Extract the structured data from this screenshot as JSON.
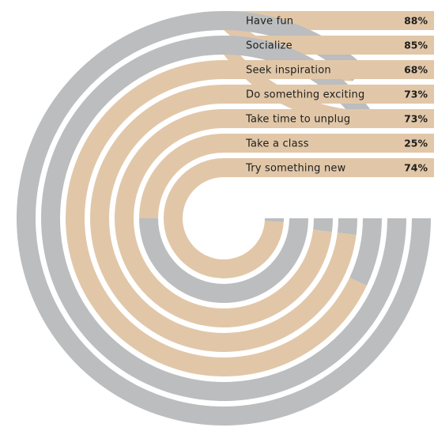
{
  "chart_data": {
    "type": "radial-bar",
    "categories": [
      "Have fun",
      "Socialize",
      "Seek inspiration",
      "Do something exciting",
      "Take time to unplug",
      "Take a class",
      "Try something new"
    ],
    "values": [
      88,
      85,
      68,
      73,
      73,
      25,
      74
    ],
    "value_labels": [
      "88%",
      "85%",
      "68%",
      "73%",
      "73%",
      "25%",
      "74%"
    ],
    "value_max": 100,
    "colors": {
      "value": "#e1c7a8",
      "remainder": "#bbbdbe"
    }
  }
}
